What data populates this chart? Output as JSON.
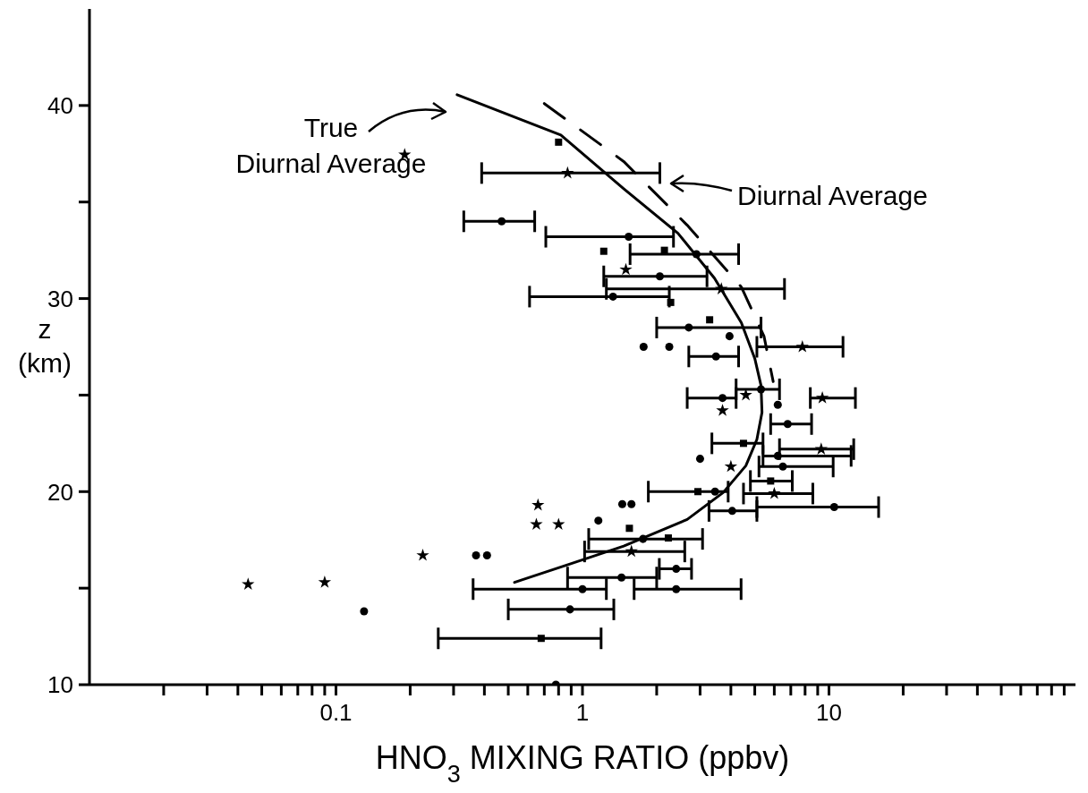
{
  "chart_data": {
    "type": "scatter",
    "xlabel": "HNO$_{3}$ MIXING RATIO (ppbv)",
    "ylabel": "z (km)",
    "log": "x",
    "xlim": [
      0.01,
      100
    ],
    "xticks": [
      {
        "value": 0.02,
        "label": null
      },
      {
        "value": 0.03,
        "label": null
      },
      {
        "value": 0.04,
        "label": null
      },
      {
        "value": 0.05,
        "label": null
      },
      {
        "value": 0.06,
        "label": null
      },
      {
        "value": 0.07,
        "label": null
      },
      {
        "value": 0.08,
        "label": null
      },
      {
        "value": 0.09,
        "label": null
      },
      {
        "value": 0.1,
        "label": "0.1"
      },
      {
        "value": 0.2,
        "label": null
      },
      {
        "value": 0.3,
        "label": null
      },
      {
        "value": 0.4,
        "label": null
      },
      {
        "value": 0.5,
        "label": null
      },
      {
        "value": 0.6,
        "label": null
      },
      {
        "value": 0.7,
        "label": null
      },
      {
        "value": 0.8,
        "label": null
      },
      {
        "value": 0.9,
        "label": null
      },
      1,
      {
        "value": 2,
        "label": null
      },
      {
        "value": 3,
        "label": null
      },
      {
        "value": 4,
        "label": null
      },
      {
        "value": 5,
        "label": null
      },
      {
        "value": 6,
        "label": null
      },
      {
        "value": 7,
        "label": null
      },
      {
        "value": 8,
        "label": null
      },
      {
        "value": 9,
        "label": null
      },
      10,
      {
        "value": 20,
        "label": null
      },
      {
        "value": 30,
        "label": null
      },
      {
        "value": 40,
        "label": null
      },
      {
        "value": 50,
        "label": null
      },
      {
        "value": 60,
        "label": null
      },
      {
        "value": 70,
        "label": null
      },
      {
        "value": 80,
        "label": null
      },
      {
        "value": 90,
        "label": null
      }
    ],
    "ylim": [
      10,
      45
    ],
    "yticks": [
      10,
      {
        "value": 15,
        "label": null
      },
      20,
      {
        "value": 25,
        "label": null
      },
      30,
      {
        "value": 35,
        "label": null
      },
      40
    ],
    "series": [
      {
        "type": "line",
        "color": "#000000",
        "line_style": "solid",
        "x": [
          0.31,
          0.817,
          1.47,
          2.44,
          3.43,
          4.41,
          5.0,
          5.3,
          5.35,
          5.1,
          4.6,
          3.72,
          2.66,
          1.47,
          0.89,
          0.53
        ],
        "values": [
          40.56,
          38.47,
          35.69,
          33.38,
          31.06,
          28.75,
          26.9,
          25.5,
          24.1,
          22.7,
          21.34,
          19.95,
          18.56,
          17.18,
          16.25,
          15.3
        ]
      },
      {
        "type": "line",
        "color": "#000000",
        "line_style": "dashed",
        "x": [
          0.7,
          1.47,
          2.66,
          4.41,
          5.45,
          5.94
        ],
        "values": [
          40.1,
          37.1,
          33.8,
          30.6,
          28.05,
          25.7
        ]
      },
      {
        "color": "#000000",
        "marker": "circle",
        "x": [
          0.13,
          0.37,
          0.41,
          0.78,
          1.16,
          1.45,
          1.58,
          3.0,
          0.89,
          1.0,
          2.4,
          1.44,
          2.4,
          1.76,
          4.05,
          10.5,
          3.45,
          6.5,
          6.2,
          6.8,
          6.2,
          3.7,
          5.3,
          0.47,
          1.54,
          2.9,
          2.06,
          1.33,
          2.7,
          3.95,
          1.77,
          2.25,
          3.48
        ],
        "values": [
          13.8,
          16.7,
          16.7,
          10,
          18.5,
          19.35,
          19.35,
          21.7,
          13.9,
          14.95,
          14.95,
          15.55,
          16.0,
          17.55,
          19.0,
          19.2,
          20.0,
          21.3,
          21.85,
          23.5,
          24.5,
          24.85,
          25.3,
          34.0,
          33.2,
          32.3,
          31.15,
          30.1,
          28.5,
          28.05,
          27.5,
          27.5,
          27.0
        ],
        "xerrors": [
          null,
          null,
          null,
          null,
          null,
          null,
          null,
          null,
          [
            0.5,
            1.34
          ],
          [
            0.36,
            1.25
          ],
          [
            1.62,
            4.4
          ],
          [
            0.87,
            2.0
          ],
          [
            2.05,
            2.77
          ],
          [
            1.06,
            3.07
          ],
          [
            3.26,
            5.1
          ],
          [
            5.1,
            15.9
          ],
          [
            1.85,
            3.9
          ],
          [
            5.2,
            10.4
          ],
          [
            5.4,
            12.3
          ],
          [
            5.8,
            8.5
          ],
          null,
          [
            2.66,
            4.2
          ],
          [
            4.2,
            6.3
          ],
          [
            0.33,
            0.64
          ],
          [
            0.71,
            2.34
          ],
          [
            1.56,
            4.3
          ],
          [
            1.22,
            3.2
          ],
          [
            0.61,
            2.25
          ],
          [
            2.0,
            5.3
          ],
          null,
          null,
          null,
          [
            2.7,
            4.3
          ]
        ]
      },
      {
        "color": "#000000",
        "marker": "square",
        "x": [
          0.68,
          1.55,
          2.23,
          2.94,
          5.8,
          4.5,
          0.8,
          1.22,
          2.15,
          2.28,
          3.28
        ],
        "values": [
          12.4,
          18.1,
          17.6,
          20.0,
          20.55,
          22.5,
          38.1,
          32.45,
          32.5,
          29.8,
          28.9
        ],
        "xerrors": [
          [
            0.26,
            1.19
          ],
          null,
          null,
          null,
          [
            4.8,
            7.1
          ],
          [
            3.35,
            5.4
          ],
          null,
          null,
          null,
          null,
          null
        ]
      },
      {
        "color": "#000000",
        "marker": "star",
        "x": [
          0.044,
          0.09,
          0.225,
          0.66,
          0.65,
          0.8,
          0.19,
          4.0,
          3.7,
          1.58,
          6.0,
          9.3,
          4.6,
          9.4,
          0.87,
          1.5,
          3.66,
          7.8
        ],
        "values": [
          15.2,
          15.3,
          16.7,
          19.3,
          18.3,
          18.3,
          37.45,
          21.3,
          24.2,
          16.9,
          19.9,
          22.2,
          25.0,
          24.85,
          36.5,
          31.5,
          30.5,
          27.5
        ],
        "xerrors": [
          null,
          null,
          null,
          null,
          null,
          null,
          null,
          null,
          null,
          [
            1.02,
            2.6
          ],
          [
            4.5,
            8.6
          ],
          [
            6.3,
            12.6
          ],
          null,
          [
            8.4,
            12.8
          ],
          [
            0.39,
            2.06
          ],
          null,
          [
            1.25,
            6.6
          ],
          [
            5.1,
            11.4
          ]
        ]
      }
    ],
    "annotations": [
      "True Diurnal Average",
      "Diurnal Average"
    ]
  }
}
